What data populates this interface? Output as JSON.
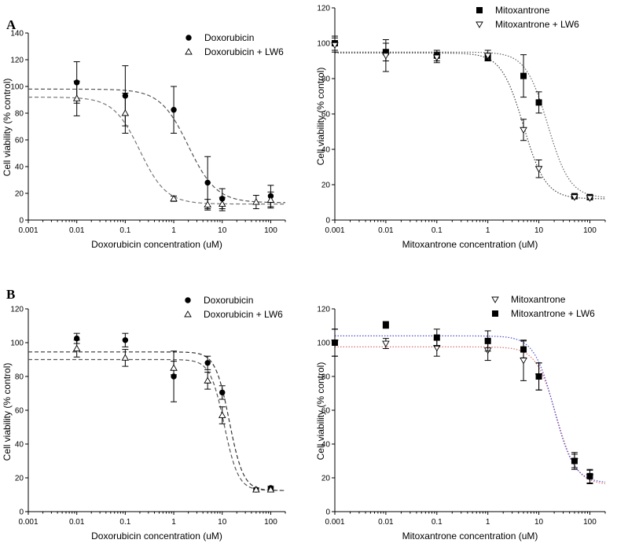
{
  "panel_labels": [
    "A",
    "B"
  ],
  "chart_data": [
    {
      "type": "scatter",
      "panel": "A",
      "xlabel": "Doxorubicin concentration (uM)",
      "ylabel": "Cell viability (% control)",
      "xscale": "log",
      "xlim": [
        0.001,
        200
      ],
      "ylim": [
        0,
        140
      ],
      "xticks": [
        "0.001",
        "0.01",
        "0.1",
        "1",
        "10",
        "100"
      ],
      "yticks": [
        "0",
        "20",
        "40",
        "60",
        "80",
        "100",
        "120",
        "140"
      ],
      "legend_position": "top-right",
      "series": [
        {
          "name": "Doxorubicin",
          "marker": "circle",
          "fill": "#000000",
          "line": "dashed",
          "line_color": "#555555",
          "x": [
            0.01,
            0.1,
            1,
            5,
            10,
            100
          ],
          "y": [
            103,
            93,
            82.5,
            28,
            16,
            18
          ],
          "err": [
            15.5,
            22.5,
            17.5,
            19.5,
            7.5,
            8
          ],
          "fit": {
            "top": 98,
            "bottom": 13,
            "ec50": 2.0,
            "hill": 1.5
          }
        },
        {
          "name": "Doxorubicin + LW6",
          "marker": "triangle-up",
          "fill": "#ffffff",
          "line": "dashed",
          "line_color": "#777777",
          "x": [
            0.01,
            0.1,
            1,
            5,
            10,
            50,
            100
          ],
          "y": [
            91,
            80,
            16,
            11.5,
            12,
            13.5,
            15
          ],
          "err": [
            13,
            15,
            2,
            4,
            5,
            5,
            6
          ],
          "fit": {
            "top": 92,
            "bottom": 12,
            "ec50": 0.2,
            "hill": 1.6
          }
        }
      ]
    },
    {
      "type": "scatter",
      "panel": "A",
      "xlabel": "Mitoxantrone concentration (uM)",
      "ylabel": "Cell viability (% control)",
      "xscale": "log",
      "xlim": [
        0.001,
        200
      ],
      "ylim": [
        0,
        120
      ],
      "xticks": [
        "0.001",
        "0.01",
        "0.1",
        "1",
        "10",
        "100"
      ],
      "yticks": [
        "0",
        "20",
        "40",
        "60",
        "80",
        "100",
        "120"
      ],
      "legend_position": "top-right",
      "series": [
        {
          "name": "Mitoxantrone",
          "marker": "square",
          "fill": "#000000",
          "line": "dotted",
          "line_color": "#666666",
          "x": [
            0.001,
            0.01,
            0.1,
            1,
            5,
            10,
            50,
            100
          ],
          "y": [
            100,
            95,
            93,
            92,
            81.5,
            66.5,
            13.5,
            13
          ],
          "err": [
            4,
            5,
            3,
            2,
            12,
            6,
            1,
            1
          ],
          "fit": {
            "top": 95,
            "bottom": 12.5,
            "ec50": 15,
            "hill": 2.0
          }
        },
        {
          "name": "Mitoxantrone + LW6",
          "marker": "triangle-down",
          "fill": "#ffffff",
          "line": "dotted",
          "line_color": "#444444",
          "x": [
            0.001,
            0.01,
            0.1,
            1,
            5,
            10,
            50,
            100
          ],
          "y": [
            99,
            93,
            92,
            93,
            51,
            29,
            13,
            12.5
          ],
          "err": [
            4,
            9,
            3,
            3,
            6,
            5,
            1,
            1
          ],
          "fit": {
            "top": 94.5,
            "bottom": 12,
            "ec50": 5.0,
            "hill": 2.0
          }
        }
      ]
    },
    {
      "type": "scatter",
      "panel": "B",
      "xlabel": "Doxorubicin concentration (uM)",
      "ylabel": "Cell viability (% control)",
      "xscale": "log",
      "xlim": [
        0.001,
        200
      ],
      "ylim": [
        0,
        120
      ],
      "xticks": [
        "0.001",
        "0.01",
        "0.1",
        "1",
        "10",
        "100"
      ],
      "yticks": [
        "0",
        "20",
        "40",
        "60",
        "80",
        "100",
        "120"
      ],
      "legend_position": "top-right",
      "series": [
        {
          "name": "Doxorubicin",
          "marker": "circle",
          "fill": "#000000",
          "line": "dashed",
          "line_color": "#333333",
          "x": [
            0.01,
            0.1,
            1,
            5,
            10,
            50,
            100
          ],
          "y": [
            102.5,
            101.5,
            80,
            88,
            70.5,
            13,
            14
          ],
          "err": [
            3,
            4,
            15,
            4,
            4,
            1,
            1
          ],
          "fit": {
            "top": 94.5,
            "bottom": 12.5,
            "ec50": 14,
            "hill": 3.0
          }
        },
        {
          "name": "Doxorubicin + LW6",
          "marker": "triangle-up",
          "fill": "#ffffff",
          "line": "dashed",
          "line_color": "#555555",
          "x": [
            0.01,
            0.1,
            1,
            5,
            10,
            50,
            100
          ],
          "y": [
            96.5,
            91,
            85,
            77.5,
            57,
            13,
            13
          ],
          "err": [
            5,
            5,
            4,
            5,
            5,
            1,
            1
          ],
          "fit": {
            "top": 90,
            "bottom": 12.5,
            "ec50": 11,
            "hill": 3.0
          }
        }
      ]
    },
    {
      "type": "scatter",
      "panel": "B",
      "xlabel": "Mitoxantrone concentration (uM)",
      "ylabel": "Cell viability (% control)",
      "xscale": "log",
      "xlim": [
        0.001,
        200
      ],
      "ylim": [
        0,
        120
      ],
      "xticks": [
        "0.001",
        "0.01",
        "0.1",
        "1",
        "10",
        "100"
      ],
      "yticks": [
        "0",
        "20",
        "40",
        "60",
        "80",
        "100",
        "120"
      ],
      "legend_position": "top-right",
      "series": [
        {
          "name": "Mitoxantrone",
          "marker": "triangle-down",
          "fill": "#ffffff",
          "line": "dotted",
          "line_color": "#e07070",
          "x": [
            0.001,
            0.01,
            0.1,
            1,
            5,
            10,
            50,
            100
          ],
          "y": [
            100,
            99.5,
            97,
            95.5,
            89.5,
            80,
            30,
            20.5
          ],
          "err": [
            8,
            3,
            5,
            6,
            12,
            8,
            4,
            4
          ],
          "fit": {
            "top": 97.5,
            "bottom": 16,
            "ec50": 22,
            "hill": 2.2
          }
        },
        {
          "name": "Mitoxantrone + LW6",
          "marker": "square",
          "fill": "#000000",
          "line": "dotted",
          "line_color": "#5050d0",
          "x": [
            0.001,
            0.01,
            0.1,
            1,
            5,
            10,
            50,
            100
          ],
          "y": [
            100,
            110.5,
            103,
            101,
            96,
            80,
            30,
            21
          ],
          "err": [
            8,
            2,
            5,
            6,
            5,
            8,
            5,
            4
          ],
          "fit": {
            "top": 104,
            "bottom": 17,
            "ec50": 20,
            "hill": 2.2
          }
        }
      ]
    }
  ]
}
